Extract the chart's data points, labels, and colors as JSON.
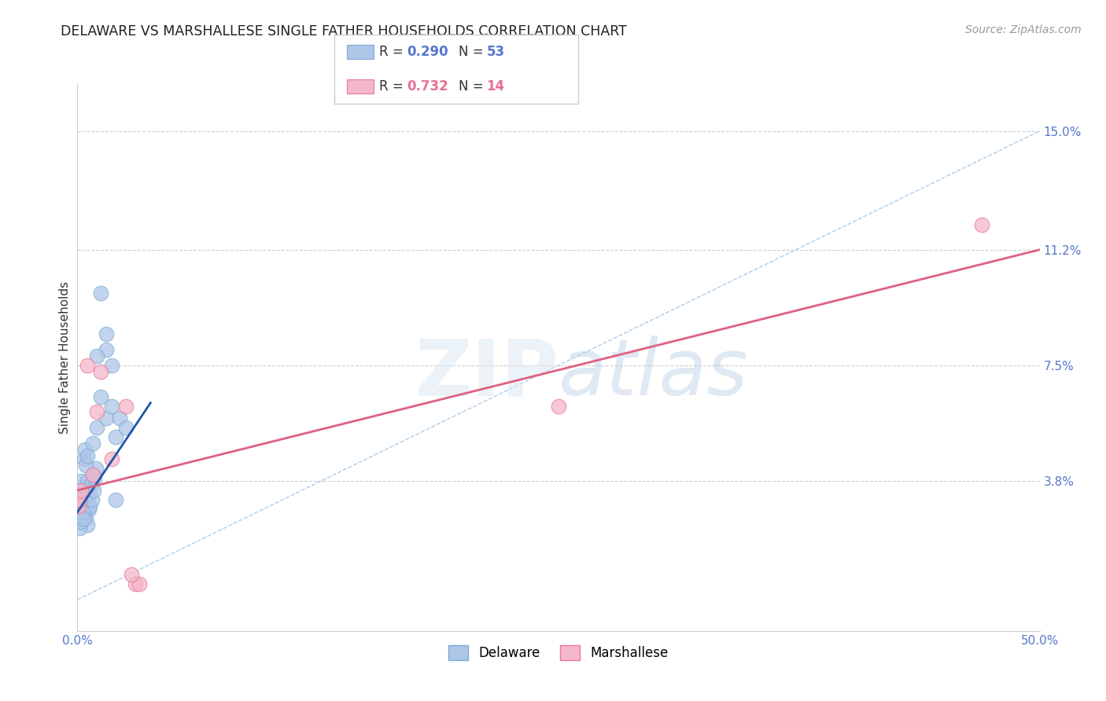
{
  "title": "DELAWARE VS MARSHALLESE SINGLE FATHER HOUSEHOLDS CORRELATION CHART",
  "source": "Source: ZipAtlas.com",
  "ylabel": "Single Father Households",
  "xlim": [
    0.0,
    50.0
  ],
  "ylim": [
    -1.0,
    16.5
  ],
  "xtick_vals": [
    0.0,
    50.0
  ],
  "xtick_labels": [
    "0.0%",
    "50.0%"
  ],
  "ytick_vals": [
    3.8,
    7.5,
    11.2,
    15.0
  ],
  "ytick_labels": [
    "3.8%",
    "7.5%",
    "11.2%",
    "15.0%"
  ],
  "background_color": "#ffffff",
  "grid_color": "#cccccc",
  "delaware_color": "#aec6e8",
  "delaware_edge_color": "#7badd4",
  "marshallese_color": "#f5b8ca",
  "marshallese_edge_color": "#e87898",
  "delaware_R": 0.29,
  "delaware_N": 53,
  "marshallese_R": 0.732,
  "marshallese_N": 14,
  "blue_line_color": "#2255aa",
  "pink_line_color": "#e06080",
  "dashed_line_color": "#aaccee",
  "delaware_x": [
    0.05,
    0.08,
    0.1,
    0.12,
    0.15,
    0.18,
    0.2,
    0.22,
    0.25,
    0.28,
    0.3,
    0.32,
    0.35,
    0.38,
    0.4,
    0.42,
    0.45,
    0.48,
    0.5,
    0.52,
    0.55,
    0.58,
    0.6,
    0.65,
    0.7,
    0.75,
    0.8,
    0.85,
    0.9,
    0.95,
    0.1,
    0.15,
    0.2,
    0.25,
    0.3,
    0.35,
    0.4,
    0.45,
    0.5,
    0.8,
    1.0,
    1.2,
    1.5,
    1.8,
    2.0,
    2.2,
    2.5,
    1.2,
    1.5,
    2.0,
    1.8,
    1.0,
    1.5
  ],
  "delaware_y": [
    3.2,
    2.8,
    3.0,
    3.5,
    2.5,
    3.8,
    3.2,
    2.9,
    3.4,
    3.1,
    2.7,
    3.3,
    2.8,
    3.0,
    3.5,
    2.6,
    3.2,
    3.6,
    3.8,
    2.4,
    3.1,
    2.9,
    3.4,
    3.0,
    3.7,
    3.2,
    4.0,
    3.5,
    3.9,
    4.2,
    2.3,
    2.5,
    2.7,
    2.8,
    2.6,
    4.5,
    4.8,
    4.3,
    4.6,
    5.0,
    5.5,
    6.5,
    5.8,
    6.2,
    5.2,
    5.8,
    5.5,
    9.8,
    8.0,
    3.2,
    7.5,
    7.8,
    8.5
  ],
  "marshallese_x": [
    0.05,
    0.1,
    0.2,
    0.5,
    0.8,
    1.0,
    1.2,
    1.8,
    2.5,
    3.0,
    3.2,
    2.8,
    25.0,
    47.0
  ],
  "marshallese_y": [
    3.0,
    3.2,
    3.5,
    7.5,
    4.0,
    6.0,
    7.3,
    4.5,
    6.2,
    0.5,
    0.5,
    0.8,
    6.2,
    12.0
  ],
  "de_reg_x0": 0.0,
  "de_reg_y0": 2.8,
  "de_reg_x1": 3.8,
  "de_reg_y1": 6.3,
  "ma_reg_x0": 0.0,
  "ma_reg_y0": 3.5,
  "ma_reg_x1": 50.0,
  "ma_reg_y1": 11.2,
  "diag_x0": 0.0,
  "diag_y0": 0.0,
  "diag_x1": 50.0,
  "diag_y1": 15.0,
  "tick_color": "#5577cc",
  "ylabel_color": "#333333",
  "title_color": "#222222",
  "source_color": "#999999"
}
